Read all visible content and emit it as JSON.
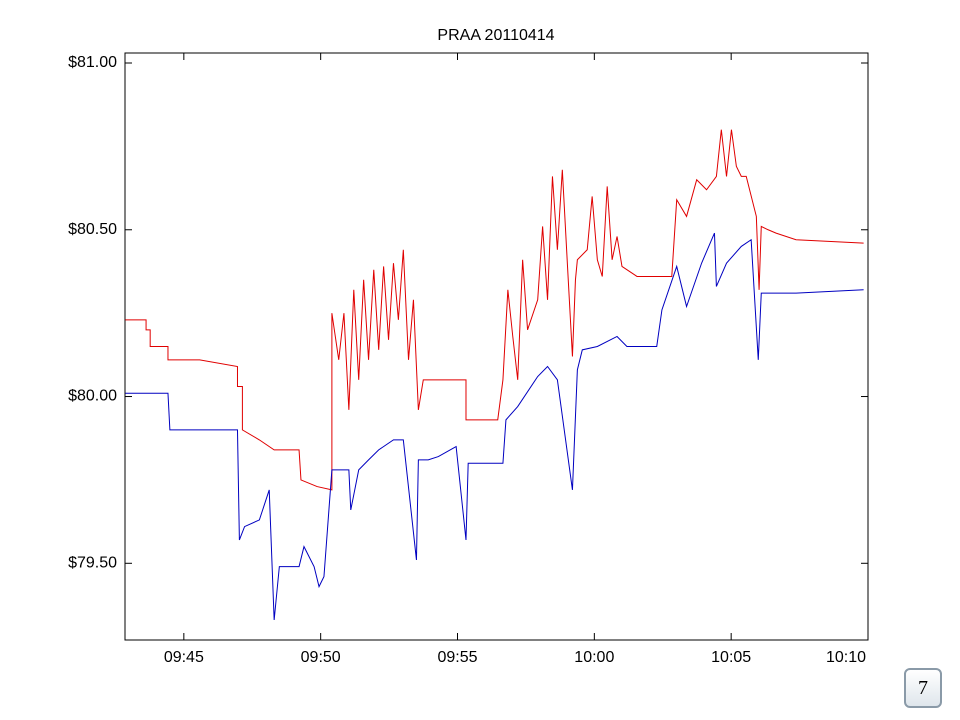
{
  "chart_data": {
    "type": "line",
    "title": "PRAA 20110414",
    "xlim": [
      582.85,
      610
    ],
    "ylim": [
      79.27,
      81.03
    ],
    "xticks": [
      {
        "value": 585,
        "label": "09:45"
      },
      {
        "value": 590,
        "label": "09:50"
      },
      {
        "value": 595,
        "label": "09:55"
      },
      {
        "value": 600,
        "label": "10:00"
      },
      {
        "value": 605,
        "label": "10:05"
      },
      {
        "value": 610,
        "label": "10:10"
      }
    ],
    "yticks": [
      {
        "value": 79.5,
        "label": "$79.50"
      },
      {
        "value": 80,
        "label": "$80.00"
      },
      {
        "value": 80.5,
        "label": "$80.50"
      },
      {
        "value": 81,
        "label": "$81.00"
      }
    ],
    "series": [
      {
        "color": "#e00000",
        "x": [
          582.86,
          583.62,
          583.62,
          583.77,
          583.77,
          584.42,
          584.42,
          585.58,
          586.96,
          586.96,
          587.14,
          587.14,
          587.76,
          588.3,
          589.21,
          589.28,
          589.87,
          590.41,
          590.41,
          590.66,
          590.85,
          591.03,
          591.21,
          591.39,
          591.57,
          591.75,
          591.94,
          592.12,
          592.3,
          592.48,
          592.66,
          592.84,
          593.02,
          593.21,
          593.39,
          593.57,
          593.75,
          595.31,
          595.31,
          596.47,
          596.66,
          596.84,
          597.02,
          597.2,
          597.38,
          597.56,
          597.93,
          598.11,
          598.29,
          598.47,
          598.65,
          598.83,
          599.02,
          599.2,
          599.31,
          599.38,
          599.74,
          599.92,
          600.11,
          600.29,
          600.47,
          600.65,
          600.83,
          601.01,
          601.56,
          602.83,
          603.01,
          603.37,
          603.74,
          604.1,
          604.46,
          604.64,
          604.83,
          605.01,
          605.19,
          605.37,
          605.55,
          605.92,
          606.02,
          606.1,
          606.35,
          606.64,
          607.37,
          609.84
        ],
        "values": [
          80.23,
          80.23,
          80.2,
          80.2,
          80.15,
          80.15,
          80.11,
          80.11,
          80.09,
          80.03,
          80.03,
          79.9,
          79.87,
          79.84,
          79.84,
          79.75,
          79.73,
          79.72,
          80.25,
          80.11,
          80.25,
          79.96,
          80.32,
          80.05,
          80.35,
          80.11,
          80.38,
          80.14,
          80.39,
          80.17,
          80.4,
          80.23,
          80.44,
          80.11,
          80.29,
          79.96,
          80.05,
          80.05,
          79.93,
          79.93,
          80.05,
          80.32,
          80.18,
          80.05,
          80.41,
          80.2,
          80.29,
          80.51,
          80.29,
          80.66,
          80.44,
          80.68,
          80.39,
          80.12,
          80.35,
          80.41,
          80.44,
          80.6,
          80.41,
          80.36,
          80.63,
          80.41,
          80.48,
          80.39,
          80.36,
          80.36,
          80.59,
          80.54,
          80.65,
          80.62,
          80.66,
          80.8,
          80.66,
          80.8,
          80.69,
          80.66,
          80.66,
          80.54,
          80.32,
          80.51,
          80.5,
          80.49,
          80.47,
          80.46
        ]
      },
      {
        "color": "#0000c0",
        "x": [
          582.86,
          584.42,
          584.49,
          586.96,
          587.03,
          587.22,
          587.76,
          588.12,
          588.3,
          588.49,
          589.21,
          589.39,
          589.76,
          589.94,
          590.12,
          590.41,
          591.03,
          591.1,
          591.39,
          591.75,
          592.12,
          592.66,
          593.02,
          593.5,
          593.57,
          593.93,
          594.3,
          594.95,
          595.31,
          595.39,
          596.66,
          596.77,
          597.2,
          597.93,
          598.29,
          598.65,
          599.2,
          599.38,
          599.56,
          600.11,
          600.83,
          601.19,
          602.28,
          602.47,
          603.01,
          603.37,
          603.92,
          604.39,
          604.46,
          604.83,
          605.37,
          605.73,
          605.99,
          606.1,
          607.37,
          609.84
        ],
        "values": [
          80.01,
          80.01,
          79.9,
          79.9,
          79.57,
          79.61,
          79.63,
          79.72,
          79.33,
          79.49,
          79.49,
          79.55,
          79.49,
          79.43,
          79.46,
          79.78,
          79.78,
          79.66,
          79.78,
          79.81,
          79.84,
          79.87,
          79.87,
          79.51,
          79.81,
          79.81,
          79.82,
          79.85,
          79.57,
          79.8,
          79.8,
          79.93,
          79.97,
          80.06,
          80.09,
          80.05,
          79.72,
          80.08,
          80.14,
          80.15,
          80.18,
          80.15,
          80.15,
          80.26,
          80.39,
          80.27,
          80.4,
          80.49,
          80.33,
          80.4,
          80.45,
          80.47,
          80.11,
          80.31,
          80.31,
          80.32
        ]
      }
    ]
  },
  "page_number": "7"
}
